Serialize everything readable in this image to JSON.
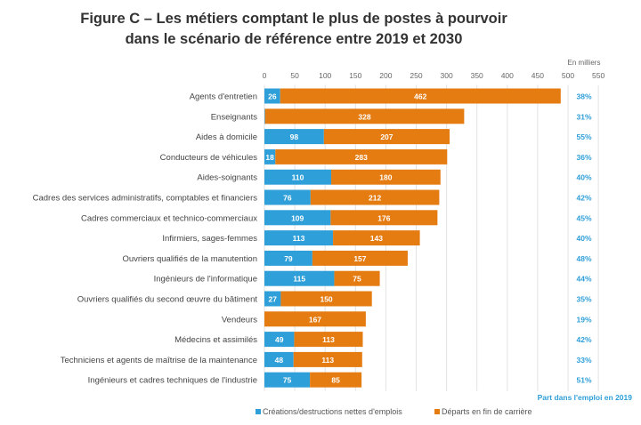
{
  "chart_data": {
    "type": "bar",
    "stacked": true,
    "orientation": "horizontal",
    "title": "Figure C – Les métiers comptant le plus de postes à pourvoir",
    "subtitle": "dans le scénario de référence entre 2019 et 2030",
    "unit_label": "En milliers",
    "xlim": [
      0,
      550
    ],
    "xticks": [
      0,
      50,
      100,
      150,
      200,
      250,
      300,
      350,
      400,
      450,
      500,
      550
    ],
    "categories": [
      "Agents d'entretien",
      "Enseignants",
      "Aides à domicile",
      "Conducteurs de véhicules",
      "Aides-soignants",
      "Cadres des services administratifs, comptables et financiers",
      "Cadres commerciaux et technico-commerciaux",
      "Infirmiers, sages-femmes",
      "Ouvriers qualifiés de la manutention",
      "Ingénieurs de l'informatique",
      "Ouvriers qualifiés du second œuvre du bâtiment",
      "Vendeurs",
      "Médecins et assimilés",
      "Techniciens et agents de maîtrise de la maintenance",
      "Ingénieurs et cadres techniques de l'industrie"
    ],
    "series": [
      {
        "name": "Créations/destructions nettes d'emplois",
        "color": "#2e9fd8",
        "values": [
          26,
          1,
          98,
          18,
          110,
          76,
          109,
          113,
          79,
          115,
          27,
          0,
          49,
          48,
          75
        ]
      },
      {
        "name": "Départs en fin de carrière",
        "color": "#e57c12",
        "values": [
          462,
          328,
          207,
          283,
          180,
          212,
          176,
          143,
          157,
          75,
          150,
          167,
          113,
          113,
          85
        ]
      }
    ],
    "share_label": "Part dans l'emploi en 2019",
    "share_values": [
      "38%",
      "31%",
      "55%",
      "36%",
      "40%",
      "42%",
      "45%",
      "40%",
      "48%",
      "44%",
      "35%",
      "19%",
      "42%",
      "33%",
      "51%"
    ],
    "legend": "bottom",
    "grid": true
  }
}
